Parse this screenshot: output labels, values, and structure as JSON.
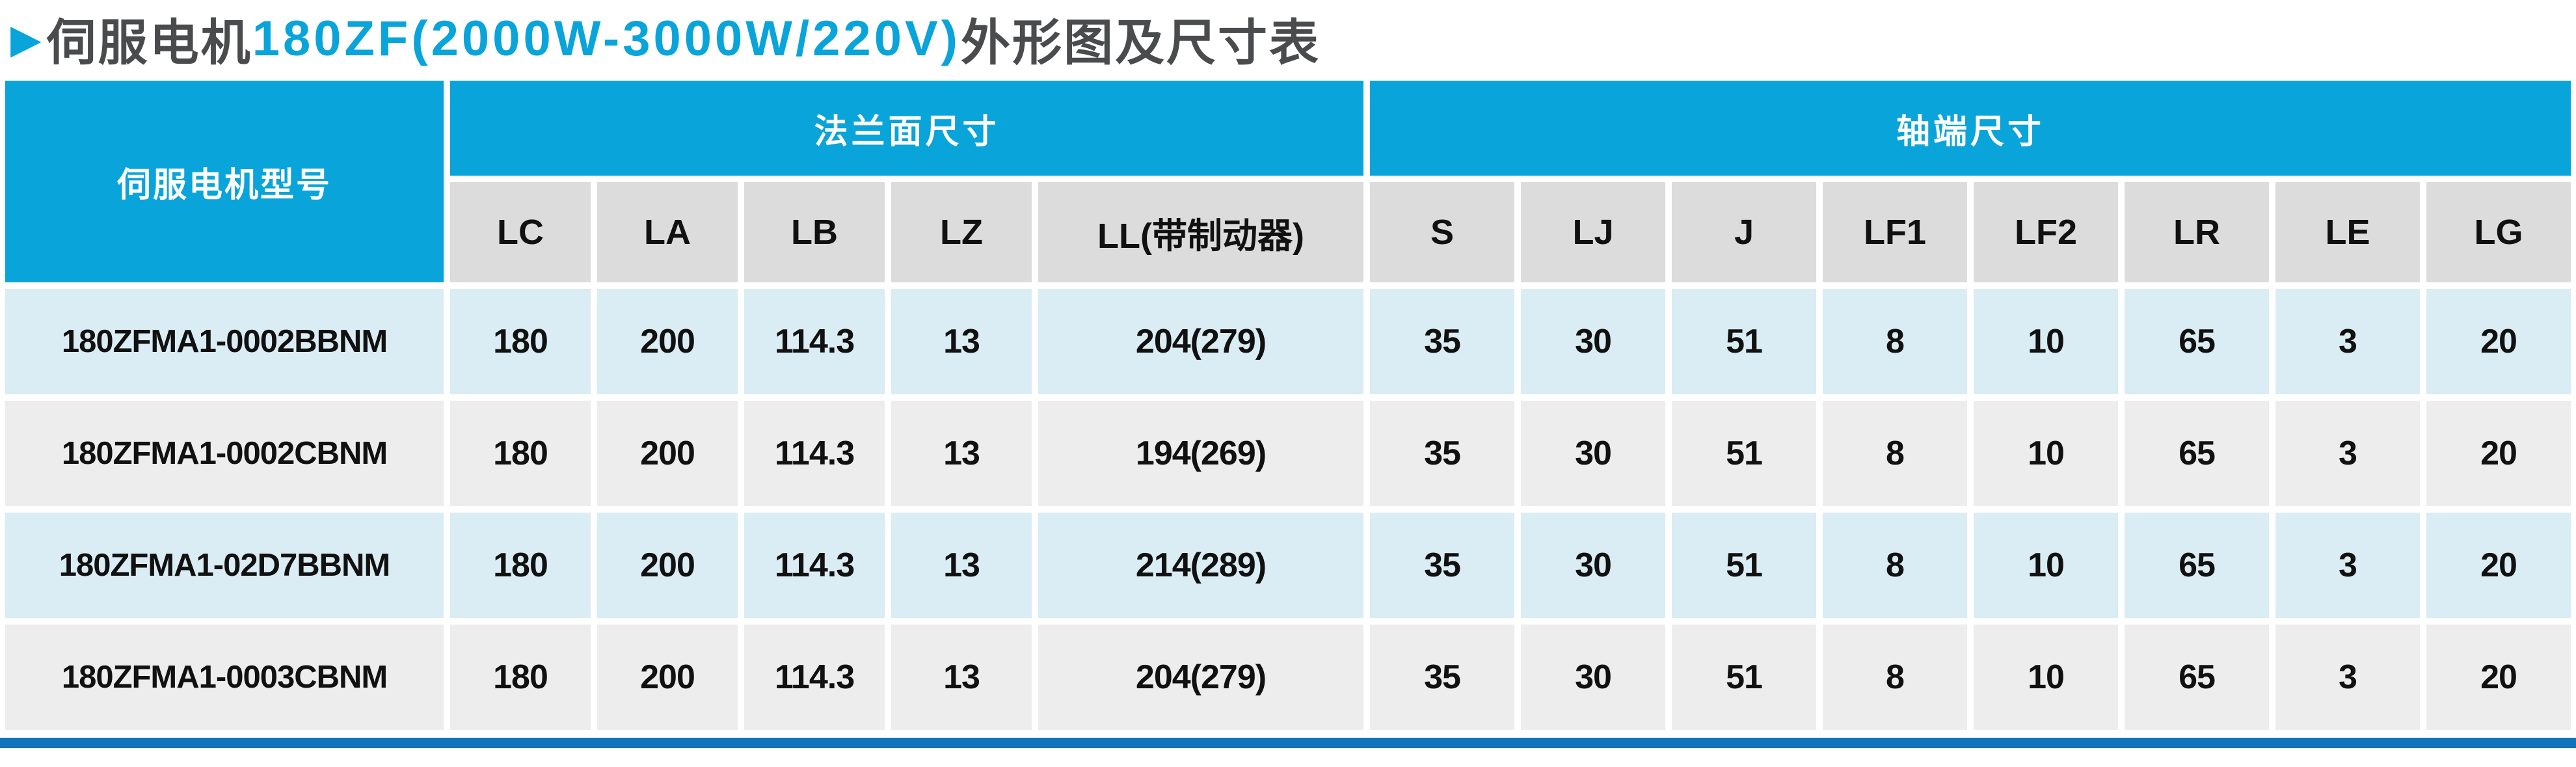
{
  "title": {
    "arrow": "▶",
    "prefix": "伺服电机",
    "highlight": "180ZF(2000W-3000W/220V)",
    "suffix": "外形图及尺寸表"
  },
  "table": {
    "model_header": "伺服电机型号",
    "groups": [
      {
        "label": "法兰面尺寸",
        "columns": [
          "LC",
          "LA",
          "LB",
          "LZ",
          "LL(带制动器)"
        ]
      },
      {
        "label": "轴端尺寸",
        "columns": [
          "S",
          "LJ",
          "J",
          "LF1",
          "LF2",
          "LR",
          "LE",
          "LG"
        ]
      }
    ],
    "rows": [
      {
        "model": "180ZFMA1-0002BBNM",
        "values": [
          "180",
          "200",
          "114.3",
          "13",
          "204(279)",
          "35",
          "30",
          "51",
          "8",
          "10",
          "65",
          "3",
          "20"
        ]
      },
      {
        "model": "180ZFMA1-0002CBNM",
        "values": [
          "180",
          "200",
          "114.3",
          "13",
          "194(269)",
          "35",
          "30",
          "51",
          "8",
          "10",
          "65",
          "3",
          "20"
        ]
      },
      {
        "model": "180ZFMA1-02D7BBNM",
        "values": [
          "180",
          "200",
          "114.3",
          "13",
          "214(289)",
          "35",
          "30",
          "51",
          "8",
          "10",
          "65",
          "3",
          "20"
        ]
      },
      {
        "model": "180ZFMA1-0003CBNM",
        "values": [
          "180",
          "200",
          "114.3",
          "13",
          "204(279)",
          "35",
          "30",
          "51",
          "8",
          "10",
          "65",
          "3",
          "20"
        ]
      }
    ]
  },
  "colors": {
    "header_blue": "#09a4da",
    "row_blue": "#daecf4",
    "row_gray": "#ededed",
    "subheader_gray": "#dcdcdc",
    "bottom_bar_blue": "#1272bb",
    "title_dark": "#4a4b4d",
    "cell_text": "#111111"
  }
}
